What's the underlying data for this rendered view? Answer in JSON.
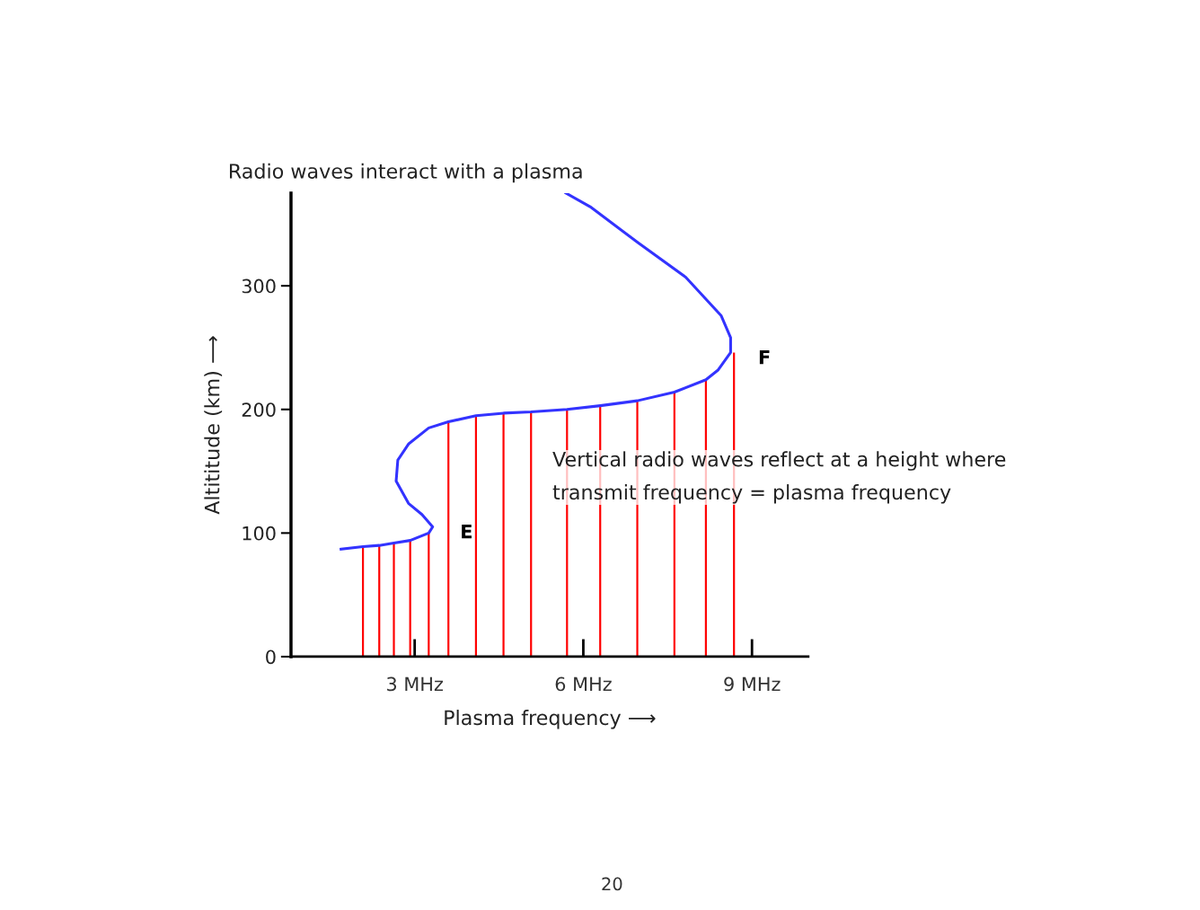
{
  "chart_data": {
    "type": "line",
    "title": "Radio waves interact with a plasma",
    "xlabel": "Plasma frequency ⟶",
    "ylabel": "Altititude (km) ⟶",
    "xlim": [
      0.8,
      10
    ],
    "ylim": [
      0,
      375
    ],
    "xticks": [
      {
        "value": 3,
        "label": "3 MHz"
      },
      {
        "value": 6,
        "label": "6 MHz"
      },
      {
        "value": 9,
        "label": "9 MHz"
      }
    ],
    "yticks": [
      0,
      100,
      200,
      300
    ],
    "grid": false,
    "series": [
      {
        "color": "#3333ff",
        "x": [
          1.69,
          2.08,
          2.37,
          2.63,
          2.92,
          3.25,
          3.32,
          3.13,
          2.89,
          2.67,
          2.7,
          2.89,
          3.25,
          3.6,
          4.09,
          4.58,
          5.07,
          5.71,
          6.3,
          6.96,
          7.62,
          8.18,
          8.4,
          8.62,
          8.62,
          8.45,
          7.82,
          6.97,
          6.12,
          5.69
        ],
        "values": [
          87,
          89,
          90,
          92,
          94,
          100,
          105,
          115,
          124,
          142,
          159,
          172,
          185,
          190,
          195,
          197,
          198,
          200,
          203,
          207,
          214,
          224,
          232,
          246,
          258,
          276,
          307,
          335,
          364,
          375
        ]
      },
      {
        "type": "bar",
        "color": "#ff0000",
        "x": [
          2.08,
          2.37,
          2.63,
          2.92,
          3.25,
          3.6,
          4.09,
          4.58,
          5.07,
          5.71,
          6.3,
          6.96,
          7.62,
          8.18,
          8.68
        ],
        "values": [
          89,
          90,
          92,
          94,
          100,
          190,
          195,
          197,
          198,
          200,
          203,
          207,
          214,
          224,
          246
        ]
      }
    ],
    "annotations": [
      {
        "text": "E",
        "x": 3.32,
        "y": 105
      },
      {
        "text": "F",
        "x": 8.62,
        "y": 246
      },
      "Vertical radio waves reflect at a height where\ntransmit frequency = plasma frequency",
      "20"
    ]
  }
}
